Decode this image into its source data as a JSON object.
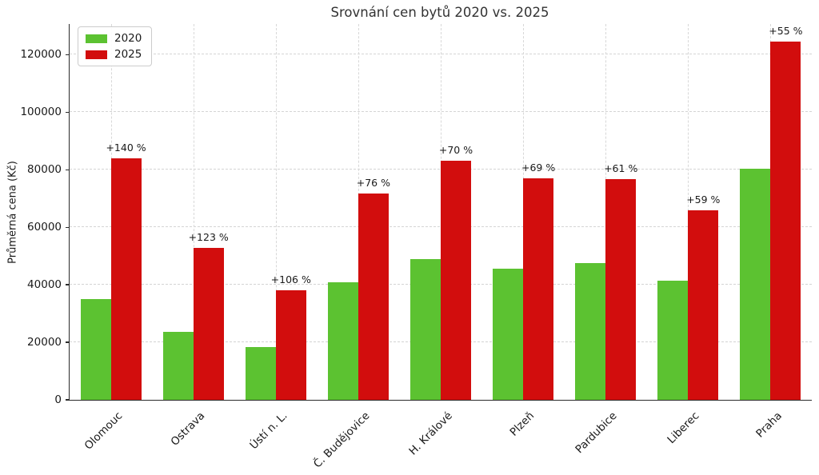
{
  "chart_data": {
    "type": "bar",
    "title": "Srovnání cen bytů 2020 vs. 2025",
    "xlabel": "",
    "ylabel": "Průměrná cena (Kč)",
    "categories": [
      "Olomouc",
      "Ostrava",
      "Ústí n. L.",
      "Č. Budějovice",
      "H. Králové",
      "Plzeň",
      "Pardubice",
      "Liberec",
      "Praha"
    ],
    "series": [
      {
        "name": "2020",
        "color": "#5cc231",
        "values": [
          35000,
          23700,
          18500,
          40800,
          49000,
          45600,
          47700,
          41500,
          80300
        ]
      },
      {
        "name": "2025",
        "color": "#d20d0d",
        "values": [
          84000,
          52900,
          38100,
          71800,
          83300,
          77000,
          76800,
          66000,
          124500
        ]
      }
    ],
    "annotations": [
      "+140 %",
      "+123 %",
      "+106 %",
      "+76 %",
      "+70 %",
      "+69 %",
      "+61 %",
      "+59 %",
      "+55 %"
    ],
    "ylim": [
      0,
      130700
    ],
    "yticks": [
      0,
      20000,
      40000,
      60000,
      80000,
      100000,
      120000
    ],
    "grid": true,
    "grid_style": "dashed",
    "legend_position": "upper left",
    "legend_entries": [
      "2020",
      "2025"
    ]
  }
}
